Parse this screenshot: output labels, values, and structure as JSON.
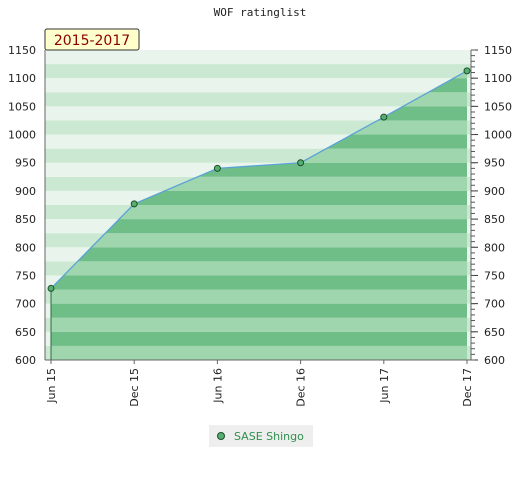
{
  "chart_data": {
    "type": "area",
    "title": "WOF ratinglist",
    "period_label": "2015-2017",
    "x": [
      "Jun 15",
      "Dec 15",
      "Jun 16",
      "Dec 16",
      "Jun 17",
      "Dec 17"
    ],
    "series": [
      {
        "name": "SASE Shingo",
        "values": [
          727,
          877,
          940,
          950,
          1031,
          1113
        ]
      }
    ],
    "ylim": [
      600,
      1150
    ],
    "yticks": [
      600,
      650,
      700,
      750,
      800,
      850,
      900,
      950,
      1000,
      1050,
      1100,
      1150
    ],
    "grid": true,
    "legend_position": "bottom-center",
    "colors": {
      "line": "#5aa3d6",
      "fill_dark": "#6fbe88",
      "fill_light": "#9fd6ae",
      "background_band_a": "#cbe8d2",
      "background_band_b": "#e9f5ec",
      "marker": "#55b070",
      "marker_border": "#1e4d2b",
      "period_box": "#ffffcc",
      "period_text": "#8b0000"
    }
  }
}
